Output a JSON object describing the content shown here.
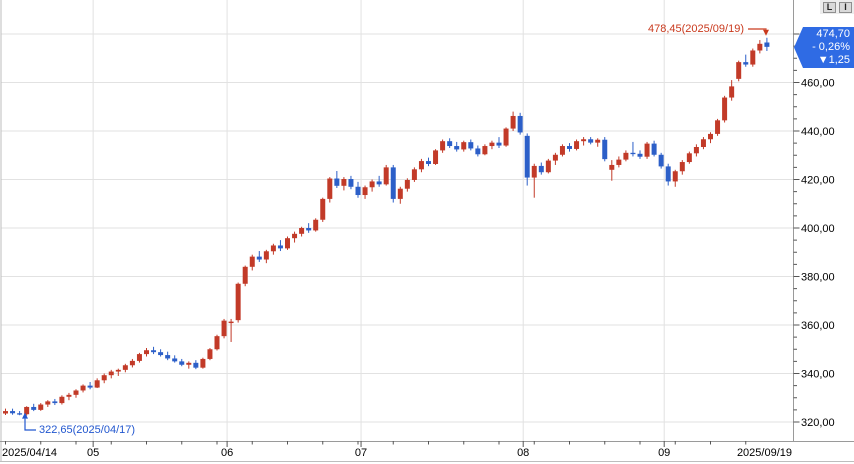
{
  "toolbar": {
    "buttons": [
      {
        "label": "L"
      },
      {
        "label": "I"
      }
    ]
  },
  "price_tag": {
    "price": "474,70",
    "change_pct": "- 0,26%",
    "change_abs": "▼1,25",
    "bg_color": "#2f6be4",
    "text_color": "#ffffff"
  },
  "annotations": {
    "high": {
      "label": "478,45(2025/09/19)",
      "value": 478.45,
      "color": "#c93a1e"
    },
    "low": {
      "label": "322,65(2025/04/17)",
      "value": 322.65,
      "color": "#2257cf"
    }
  },
  "chart_data": {
    "type": "candlestick",
    "title": "",
    "x_axis_labels": [
      "2025/04/14",
      "05",
      "06",
      "07",
      "08",
      "09",
      "2025/09/19"
    ],
    "y_axis_tick_labels": [
      "460,00",
      "440,00",
      "420,00",
      "400,00",
      "380,00",
      "360,00",
      "340,00",
      "320,00"
    ],
    "y_axis_tick_values": [
      460,
      440,
      420,
      400,
      380,
      360,
      340,
      320
    ],
    "ylim": [
      318,
      482
    ],
    "grid": true,
    "y_grid_values": [
      320,
      340,
      360,
      380,
      400,
      420,
      440,
      460,
      480
    ],
    "month_start_indices": [
      13,
      32,
      51,
      74,
      94
    ],
    "date_range": {
      "start": "2025/04/14",
      "end": "2025/09/19"
    },
    "colors": {
      "up": "#c23a28",
      "down": "#2c5fc8",
      "grid": "#e2e2e2",
      "axis": "#9a9a9a",
      "text": "#000000"
    },
    "last": {
      "close": 474.7,
      "change_pct": -0.26,
      "change_abs": -1.25,
      "high_date": "2025/09/19",
      "low_date": "2025/04/17"
    },
    "candles_format": [
      "open",
      "high",
      "low",
      "close"
    ],
    "candles": [
      [
        323.5,
        325.5,
        322.9,
        324.5
      ],
      [
        324.5,
        325.5,
        323.0,
        323.6
      ],
      [
        323.6,
        324.5,
        322.8,
        323.2
      ],
      [
        323.2,
        326.5,
        322.65,
        326.2
      ],
      [
        326.2,
        327.5,
        324.5,
        325.0
      ],
      [
        325.0,
        327.8,
        324.6,
        327.2
      ],
      [
        327.2,
        329.0,
        326.2,
        328.5
      ],
      [
        328.5,
        329.5,
        327.0,
        327.8
      ],
      [
        327.8,
        331.0,
        327.2,
        330.4
      ],
      [
        330.4,
        332.0,
        329.0,
        331.2
      ],
      [
        331.2,
        333.5,
        330.0,
        333.0
      ],
      [
        333.0,
        335.5,
        332.2,
        335.0
      ],
      [
        335.0,
        336.5,
        333.5,
        334.2
      ],
      [
        334.2,
        338.0,
        334.0,
        337.2
      ],
      [
        337.2,
        340.0,
        336.0,
        339.3
      ],
      [
        339.3,
        341.5,
        338.0,
        340.8
      ],
      [
        340.8,
        342.0,
        339.0,
        341.5
      ],
      [
        341.5,
        344.0,
        340.5,
        343.4
      ],
      [
        343.4,
        346.0,
        342.5,
        345.2
      ],
      [
        345.2,
        348.5,
        344.5,
        348.0
      ],
      [
        348.0,
        350.5,
        347.0,
        349.6
      ],
      [
        349.6,
        351.0,
        348.0,
        348.8
      ],
      [
        348.8,
        350.0,
        347.0,
        347.6
      ],
      [
        347.6,
        349.0,
        345.5,
        346.2
      ],
      [
        346.2,
        347.5,
        344.5,
        345.0
      ],
      [
        345.0,
        346.0,
        343.0,
        343.6
      ],
      [
        343.6,
        345.0,
        342.0,
        344.4
      ],
      [
        344.4,
        345.5,
        341.8,
        342.4
      ],
      [
        342.4,
        346.5,
        342.0,
        346.0
      ],
      [
        346.0,
        350.5,
        345.5,
        350.0
      ],
      [
        350.0,
        356.0,
        349.5,
        355.4
      ],
      [
        355.4,
        362.5,
        354.5,
        361.8
      ],
      [
        360.8,
        362.5,
        353.0,
        361.4
      ],
      [
        362.0,
        377.5,
        361.0,
        377.0
      ],
      [
        377.0,
        384.5,
        376.0,
        384.0
      ],
      [
        384.0,
        389.0,
        382.5,
        388.2
      ],
      [
        388.2,
        390.5,
        386.0,
        387.0
      ],
      [
        387.0,
        391.0,
        385.5,
        390.4
      ],
      [
        390.4,
        393.5,
        389.0,
        392.8
      ],
      [
        392.8,
        395.0,
        390.5,
        391.6
      ],
      [
        391.6,
        396.5,
        391.0,
        395.8
      ],
      [
        395.8,
        398.5,
        394.0,
        397.6
      ],
      [
        397.6,
        400.5,
        396.5,
        400.0
      ],
      [
        400.0,
        402.0,
        398.0,
        399.0
      ],
      [
        399.0,
        404.0,
        398.5,
        403.4
      ],
      [
        403.4,
        412.5,
        402.5,
        412.0
      ],
      [
        412.0,
        421.0,
        410.5,
        420.4
      ],
      [
        420.4,
        423.5,
        416.5,
        417.4
      ],
      [
        417.4,
        421.0,
        415.5,
        420.2
      ],
      [
        420.2,
        421.5,
        416.0,
        417.0
      ],
      [
        417.0,
        419.0,
        412.5,
        413.6
      ],
      [
        413.6,
        417.5,
        412.0,
        416.8
      ],
      [
        416.8,
        420.0,
        415.0,
        419.2
      ],
      [
        419.2,
        421.5,
        417.0,
        418.0
      ],
      [
        418.0,
        426.0,
        417.5,
        425.0
      ],
      [
        425.0,
        426.0,
        410.5,
        412.0
      ],
      [
        412.0,
        417.0,
        410.0,
        416.2
      ],
      [
        416.2,
        420.5,
        415.0,
        419.8
      ],
      [
        419.8,
        425.0,
        419.0,
        424.2
      ],
      [
        424.2,
        428.5,
        423.0,
        427.6
      ],
      [
        427.6,
        429.0,
        425.5,
        426.4
      ],
      [
        426.4,
        432.5,
        426.0,
        432.0
      ],
      [
        432.0,
        436.5,
        431.0,
        435.8
      ],
      [
        435.8,
        437.0,
        433.0,
        433.8
      ],
      [
        433.8,
        435.5,
        431.5,
        432.4
      ],
      [
        432.4,
        436.0,
        431.5,
        435.4
      ],
      [
        435.4,
        436.5,
        432.0,
        432.8
      ],
      [
        432.8,
        434.0,
        429.5,
        430.4
      ],
      [
        430.4,
        434.5,
        430.0,
        433.8
      ],
      [
        433.8,
        436.0,
        432.5,
        435.2
      ],
      [
        435.2,
        437.5,
        433.0,
        434.0
      ],
      [
        434.0,
        441.5,
        433.5,
        441.0
      ],
      [
        441.0,
        448.0,
        440.0,
        446.2
      ],
      [
        446.2,
        447.5,
        438.5,
        439.4
      ],
      [
        438.0,
        439.0,
        417.5,
        420.8
      ],
      [
        420.8,
        426.5,
        412.5,
        425.6
      ],
      [
        425.6,
        427.0,
        422.0,
        423.0
      ],
      [
        423.0,
        428.5,
        422.5,
        427.8
      ],
      [
        427.8,
        431.0,
        426.0,
        430.2
      ],
      [
        430.2,
        434.5,
        429.5,
        433.8
      ],
      [
        433.8,
        435.0,
        431.5,
        432.6
      ],
      [
        432.6,
        436.5,
        432.0,
        435.8
      ],
      [
        435.8,
        437.5,
        434.0,
        436.6
      ],
      [
        436.6,
        437.5,
        434.5,
        435.2
      ],
      [
        435.2,
        437.0,
        433.5,
        436.4
      ],
      [
        436.4,
        437.5,
        427.5,
        428.4
      ],
      [
        424.0,
        428.0,
        419.5,
        426.0
      ],
      [
        426.0,
        429.5,
        425.0,
        428.2
      ],
      [
        428.2,
        432.0,
        427.5,
        431.0
      ],
      [
        431.0,
        435.5,
        429.5,
        430.6
      ],
      [
        430.6,
        432.0,
        428.5,
        429.4
      ],
      [
        429.4,
        435.5,
        428.5,
        434.8
      ],
      [
        434.8,
        436.0,
        429.5,
        430.2
      ],
      [
        430.2,
        431.0,
        424.5,
        425.4
      ],
      [
        425.4,
        426.5,
        417.5,
        419.2
      ],
      [
        419.2,
        424.0,
        417.0,
        423.4
      ],
      [
        423.4,
        428.0,
        422.0,
        427.2
      ],
      [
        427.2,
        431.5,
        426.5,
        430.8
      ],
      [
        430.8,
        434.5,
        429.5,
        433.4
      ],
      [
        433.4,
        437.5,
        432.5,
        436.6
      ],
      [
        436.6,
        439.5,
        435.0,
        438.8
      ],
      [
        438.8,
        445.0,
        438.0,
        444.4
      ],
      [
        444.4,
        454.5,
        443.5,
        453.8
      ],
      [
        453.8,
        461.0,
        452.5,
        458.4
      ],
      [
        461.5,
        469.0,
        460.5,
        468.4
      ],
      [
        468.4,
        471.5,
        466.5,
        467.4
      ],
      [
        467.4,
        474.0,
        466.5,
        473.2
      ],
      [
        473.2,
        477.5,
        472.0,
        475.95
      ],
      [
        476.5,
        478.45,
        473.0,
        474.7
      ]
    ]
  }
}
